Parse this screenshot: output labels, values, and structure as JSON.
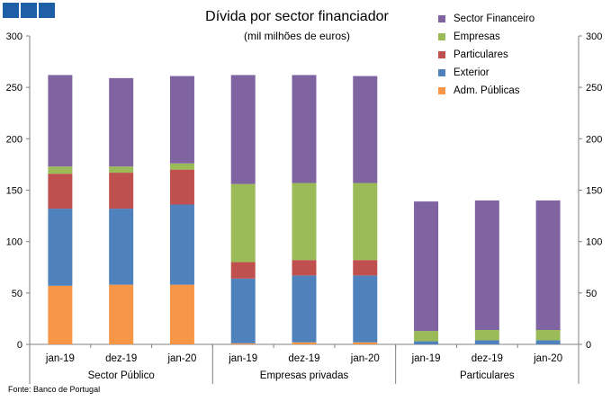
{
  "header": {
    "logo": "banco-de-portugal-logo",
    "source": "Fonte: Banco de Portugal"
  },
  "colors": {
    "Sector Financeiro": "#8064a2",
    "Empresas": "#9bbb59",
    "Particulares": "#c0504d",
    "Exterior": "#4f81bd",
    "Adm. Públicas": "#f79646",
    "axis": "#808080",
    "grid": "#d9d9d9"
  },
  "chart_data": {
    "type": "bar",
    "stacked": true,
    "title": "Dívida por sector financiador",
    "subtitle": "(mil milhões de euros)",
    "legend_position": "top-right",
    "ylim": [
      0,
      300
    ],
    "yticks": [
      0,
      50,
      100,
      150,
      200,
      250,
      300
    ],
    "secondary_y": true,
    "grid": false,
    "groups": [
      {
        "label": "Sector Público",
        "categories": [
          "jan-19",
          "dez-19",
          "jan-20"
        ]
      },
      {
        "label": "Empresas privadas",
        "categories": [
          "jan-19",
          "dez-19",
          "jan-20"
        ]
      },
      {
        "label": "Particulares",
        "categories": [
          "jan-19",
          "dez-19",
          "jan-20"
        ]
      }
    ],
    "categories": [
      "jan-19",
      "dez-19",
      "jan-20",
      "jan-19",
      "dez-19",
      "jan-20",
      "jan-19",
      "dez-19",
      "jan-20"
    ],
    "series": [
      {
        "name": "Adm. Públicas",
        "values": [
          57,
          58,
          58,
          1,
          2,
          2,
          0,
          0,
          0
        ]
      },
      {
        "name": "Exterior",
        "values": [
          75,
          74,
          78,
          63,
          65,
          65,
          3,
          4,
          4
        ]
      },
      {
        "name": "Particulares",
        "values": [
          34,
          35,
          34,
          16,
          15,
          15,
          0,
          0,
          0
        ]
      },
      {
        "name": "Empresas",
        "values": [
          7,
          6,
          6,
          76,
          75,
          75,
          10,
          10,
          10
        ]
      },
      {
        "name": "Sector Financeiro",
        "values": [
          89,
          86,
          85,
          106,
          105,
          104,
          126,
          126,
          126
        ]
      }
    ],
    "legend_order": [
      "Sector Financeiro",
      "Empresas",
      "Particulares",
      "Exterior",
      "Adm. Públicas"
    ]
  }
}
